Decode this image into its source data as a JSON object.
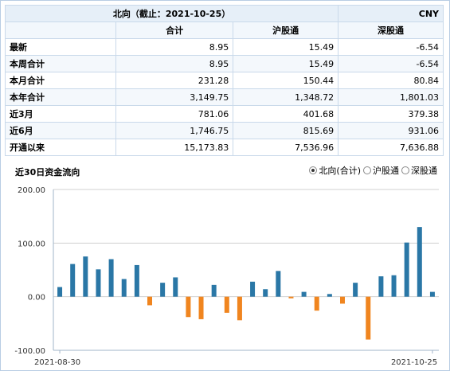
{
  "table": {
    "title": "北向（截止：2021-10-25）",
    "currency": "CNY",
    "headers": [
      "合计",
      "沪股通",
      "深股通"
    ],
    "rows": [
      {
        "label": "最新",
        "values": [
          "8.95",
          "15.49",
          "-6.54"
        ]
      },
      {
        "label": "本周合计",
        "values": [
          "8.95",
          "15.49",
          "-6.54"
        ]
      },
      {
        "label": "本月合计",
        "values": [
          "231.28",
          "150.44",
          "80.84"
        ]
      },
      {
        "label": "本年合计",
        "values": [
          "3,149.75",
          "1,348.72",
          "1,801.03"
        ]
      },
      {
        "label": "近3月",
        "values": [
          "781.06",
          "401.68",
          "379.38"
        ]
      },
      {
        "label": "近6月",
        "values": [
          "1,746.75",
          "815.69",
          "931.06"
        ]
      },
      {
        "label": "开通以来",
        "values": [
          "15,173.83",
          "7,536.96",
          "7,636.88"
        ]
      }
    ]
  },
  "chart_header": {
    "title": "近30日资金流向",
    "legend": [
      {
        "label": "北向(合计)",
        "checked": true
      },
      {
        "label": "沪股通",
        "checked": false
      },
      {
        "label": "深股通",
        "checked": false
      }
    ]
  },
  "colors": {
    "positive": "#2a77a6",
    "negative": "#f0851f",
    "grid": "#d0d0d0",
    "axis": "#a0b4c8"
  },
  "chart_data": {
    "type": "bar",
    "title": "近30日资金流向",
    "series": [
      {
        "name": "北向(合计)",
        "values": [
          18,
          61,
          75,
          51,
          70,
          33,
          59,
          -16,
          26,
          36,
          -38,
          -42,
          22,
          -30,
          -44,
          28,
          14,
          48,
          -3,
          9,
          -26,
          5,
          -13,
          26,
          -80,
          38,
          40,
          101,
          130,
          9
        ]
      }
    ],
    "ylim": [
      -100,
      200
    ],
    "yticks": [
      -100,
      0,
      100,
      200
    ],
    "ytick_labels": [
      "-100.00",
      "0.00",
      "100.00",
      "200.00"
    ],
    "x_start_label": "2021-08-30",
    "x_end_label": "2021-10-25",
    "grid": true,
    "legend_position": "top-right"
  }
}
